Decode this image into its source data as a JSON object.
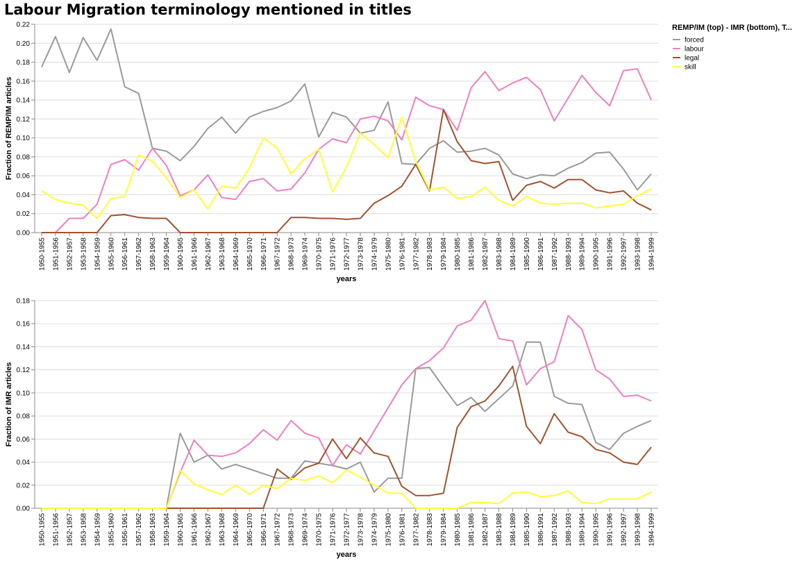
{
  "title": "Labour Migration terminology mentioned in titles",
  "legend": {
    "title": "REMP/IM (top) - IMR (bottom), T...",
    "placement": "top-right",
    "entries": [
      {
        "name": "forced",
        "color": "#999999"
      },
      {
        "name": "labour",
        "color": "#f07ec0"
      },
      {
        "name": "legal",
        "color": "#a0522d"
      },
      {
        "name": "skill",
        "color": "#ffff33"
      }
    ]
  },
  "chart_data": [
    {
      "type": "line",
      "name": "top",
      "xlabel": "years",
      "ylabel": "Fraction of REMP/IM articles",
      "ylim": [
        0,
        0.22
      ],
      "yticks": [
        0,
        0.02,
        0.04,
        0.06,
        0.08,
        0.1,
        0.12,
        0.14,
        0.16,
        0.18,
        0.2,
        0.22
      ],
      "grid": true,
      "categories": [
        "1950-1955",
        "1951-1956",
        "1952-1957",
        "1953-1958",
        "1954-1959",
        "1955-1960",
        "1956-1961",
        "1957-1962",
        "1958-1963",
        "1959-1964",
        "1960-1965",
        "1961-1966",
        "1962-1967",
        "1963-1968",
        "1964-1969",
        "1965-1970",
        "1966-1971",
        "1967-1972",
        "1968-1973",
        "1969-1974",
        "1970-1975",
        "1971-1976",
        "1972-1977",
        "1973-1978",
        "1974-1979",
        "1975-1980",
        "1976-1981",
        "1977-1982",
        "1978-1983",
        "1979-1984",
        "1980-1985",
        "1981-1986",
        "1982-1987",
        "1983-1988",
        "1984-1989",
        "1985-1990",
        "1986-1991",
        "1987-1992",
        "1988-1993",
        "1989-1994",
        "1990-1995",
        "1991-1996",
        "1992-1997",
        "1993-1998",
        "1994-1999"
      ],
      "series": [
        {
          "name": "forced",
          "color": "#999999",
          "values": [
            0.175,
            0.207,
            0.169,
            0.206,
            0.182,
            0.215,
            0.154,
            0.147,
            0.089,
            0.086,
            0.076,
            0.091,
            0.11,
            0.122,
            0.105,
            0.122,
            0.128,
            0.132,
            0.139,
            0.157,
            0.101,
            0.127,
            0.122,
            0.105,
            0.108,
            0.138,
            0.073,
            0.072,
            0.089,
            0.097,
            0.085,
            0.086,
            0.089,
            0.082,
            0.062,
            0.057,
            0.061,
            0.06,
            0.068,
            0.074,
            0.084,
            0.085,
            0.067,
            0.045,
            0.062
          ]
        },
        {
          "name": "labour",
          "color": "#f07ec0",
          "values": [
            0,
            0,
            0.015,
            0.015,
            0.03,
            0.072,
            0.077,
            0.066,
            0.089,
            0.071,
            0.039,
            0.045,
            0.061,
            0.037,
            0.035,
            0.054,
            0.057,
            0.044,
            0.046,
            0.063,
            0.088,
            0.099,
            0.095,
            0.12,
            0.123,
            0.118,
            0.098,
            0.143,
            0.134,
            0.13,
            0.108,
            0.153,
            0.17,
            0.15,
            0.158,
            0.164,
            0.151,
            0.118,
            0.142,
            0.166,
            0.148,
            0.134,
            0.171,
            0.173,
            0.14
          ]
        },
        {
          "name": "legal",
          "color": "#a0522d",
          "values": [
            0,
            0,
            0,
            0,
            0,
            0.018,
            0.019,
            0.016,
            0.015,
            0.015,
            0,
            0,
            0,
            0,
            0,
            0,
            0,
            0,
            0.016,
            0.016,
            0.015,
            0.015,
            0.014,
            0.015,
            0.031,
            0.039,
            0.049,
            0.072,
            0.044,
            0.13,
            0.096,
            0.076,
            0.073,
            0.075,
            0.034,
            0.05,
            0.054,
            0.047,
            0.056,
            0.056,
            0.045,
            0.042,
            0.044,
            0.031,
            0.024
          ]
        },
        {
          "name": "skill",
          "color": "#ffff33",
          "values": [
            0.044,
            0.035,
            0.031,
            0.029,
            0.015,
            0.036,
            0.038,
            0.082,
            0.075,
            0.058,
            0.037,
            0.045,
            0.025,
            0.049,
            0.047,
            0.068,
            0.1,
            0.089,
            0.062,
            0.078,
            0.088,
            0.043,
            0.069,
            0.105,
            0.093,
            0.079,
            0.122,
            0.075,
            0.045,
            0.048,
            0.036,
            0.038,
            0.048,
            0.034,
            0.028,
            0.038,
            0.031,
            0.03,
            0.031,
            0.031,
            0.026,
            0.028,
            0.03,
            0.039,
            0.046
          ]
        }
      ]
    },
    {
      "type": "line",
      "name": "bottom",
      "xlabel": "years",
      "ylabel": "Fraction of IMR articles",
      "ylim": [
        0,
        0.18
      ],
      "yticks": [
        0,
        0.02,
        0.04,
        0.06,
        0.08,
        0.1,
        0.12,
        0.14,
        0.16,
        0.18
      ],
      "grid": true,
      "categories": [
        "1950-1955",
        "1951-1956",
        "1952-1957",
        "1953-1958",
        "1954-1959",
        "1955-1960",
        "1956-1961",
        "1957-1962",
        "1958-1963",
        "1959-1964",
        "1960-1965",
        "1961-1966",
        "1962-1967",
        "1963-1968",
        "1964-1969",
        "1965-1970",
        "1966-1971",
        "1967-1972",
        "1968-1973",
        "1969-1974",
        "1970-1975",
        "1971-1976",
        "1972-1977",
        "1973-1978",
        "1974-1979",
        "1975-1980",
        "1976-1981",
        "1977-1982",
        "1978-1983",
        "1979-1984",
        "1980-1985",
        "1981-1986",
        "1982-1987",
        "1983-1988",
        "1984-1989",
        "1985-1990",
        "1986-1991",
        "1987-1992",
        "1988-1993",
        "1989-1994",
        "1990-1995",
        "1991-1996",
        "1992-1997",
        "1993-1998",
        "1994-1999"
      ],
      "series": [
        {
          "name": "forced",
          "color": "#999999",
          "values": [
            0,
            0,
            0,
            0,
            0,
            0,
            0,
            0,
            0,
            0,
            0.065,
            0.04,
            0.046,
            0.034,
            0.038,
            0.034,
            0.03,
            0.026,
            0.026,
            0.041,
            0.039,
            0.037,
            0.034,
            0.04,
            0.014,
            0.026,
            0.026,
            0.121,
            0.122,
            0.105,
            0.089,
            0.096,
            0.084,
            0.095,
            0.106,
            0.144,
            0.144,
            0.097,
            0.091,
            0.09,
            0.057,
            0.051,
            0.065,
            0.071,
            0.076
          ]
        },
        {
          "name": "labour",
          "color": "#f07ec0",
          "values": [
            0,
            0,
            0,
            0,
            0,
            0,
            0,
            0,
            0,
            0,
            0.031,
            0.059,
            0.046,
            0.045,
            0.048,
            0.056,
            0.068,
            0.059,
            0.076,
            0.065,
            0.061,
            0.037,
            0.055,
            0.047,
            0.067,
            0.087,
            0.107,
            0.121,
            0.128,
            0.139,
            0.158,
            0.163,
            0.18,
            0.147,
            0.145,
            0.107,
            0.121,
            0.127,
            0.167,
            0.155,
            0.12,
            0.112,
            0.097,
            0.098,
            0.093
          ]
        },
        {
          "name": "legal",
          "color": "#a0522d",
          "values": [
            0,
            0,
            0,
            0,
            0,
            0,
            0,
            0,
            0,
            0,
            0,
            0,
            0,
            0,
            0,
            0,
            0,
            0.034,
            0.025,
            0.035,
            0.039,
            0.06,
            0.043,
            0.061,
            0.048,
            0.045,
            0.019,
            0.011,
            0.011,
            0.013,
            0.07,
            0.088,
            0.093,
            0.106,
            0.123,
            0.071,
            0.056,
            0.082,
            0.066,
            0.062,
            0.051,
            0.048,
            0.04,
            0.038,
            0.053
          ]
        },
        {
          "name": "skill",
          "color": "#ffff33",
          "values": [
            0,
            0,
            0,
            0,
            0,
            0,
            0,
            0,
            0,
            0,
            0.033,
            0.021,
            0.016,
            0.012,
            0.02,
            0.012,
            0.02,
            0.017,
            0.026,
            0.024,
            0.028,
            0.022,
            0.033,
            0.027,
            0.02,
            0.013,
            0.013,
            0,
            0,
            0,
            0,
            0.005,
            0.005,
            0.004,
            0.013,
            0.014,
            0.01,
            0.011,
            0.015,
            0.005,
            0.004,
            0.008,
            0.008,
            0.008,
            0.014
          ]
        }
      ]
    }
  ]
}
